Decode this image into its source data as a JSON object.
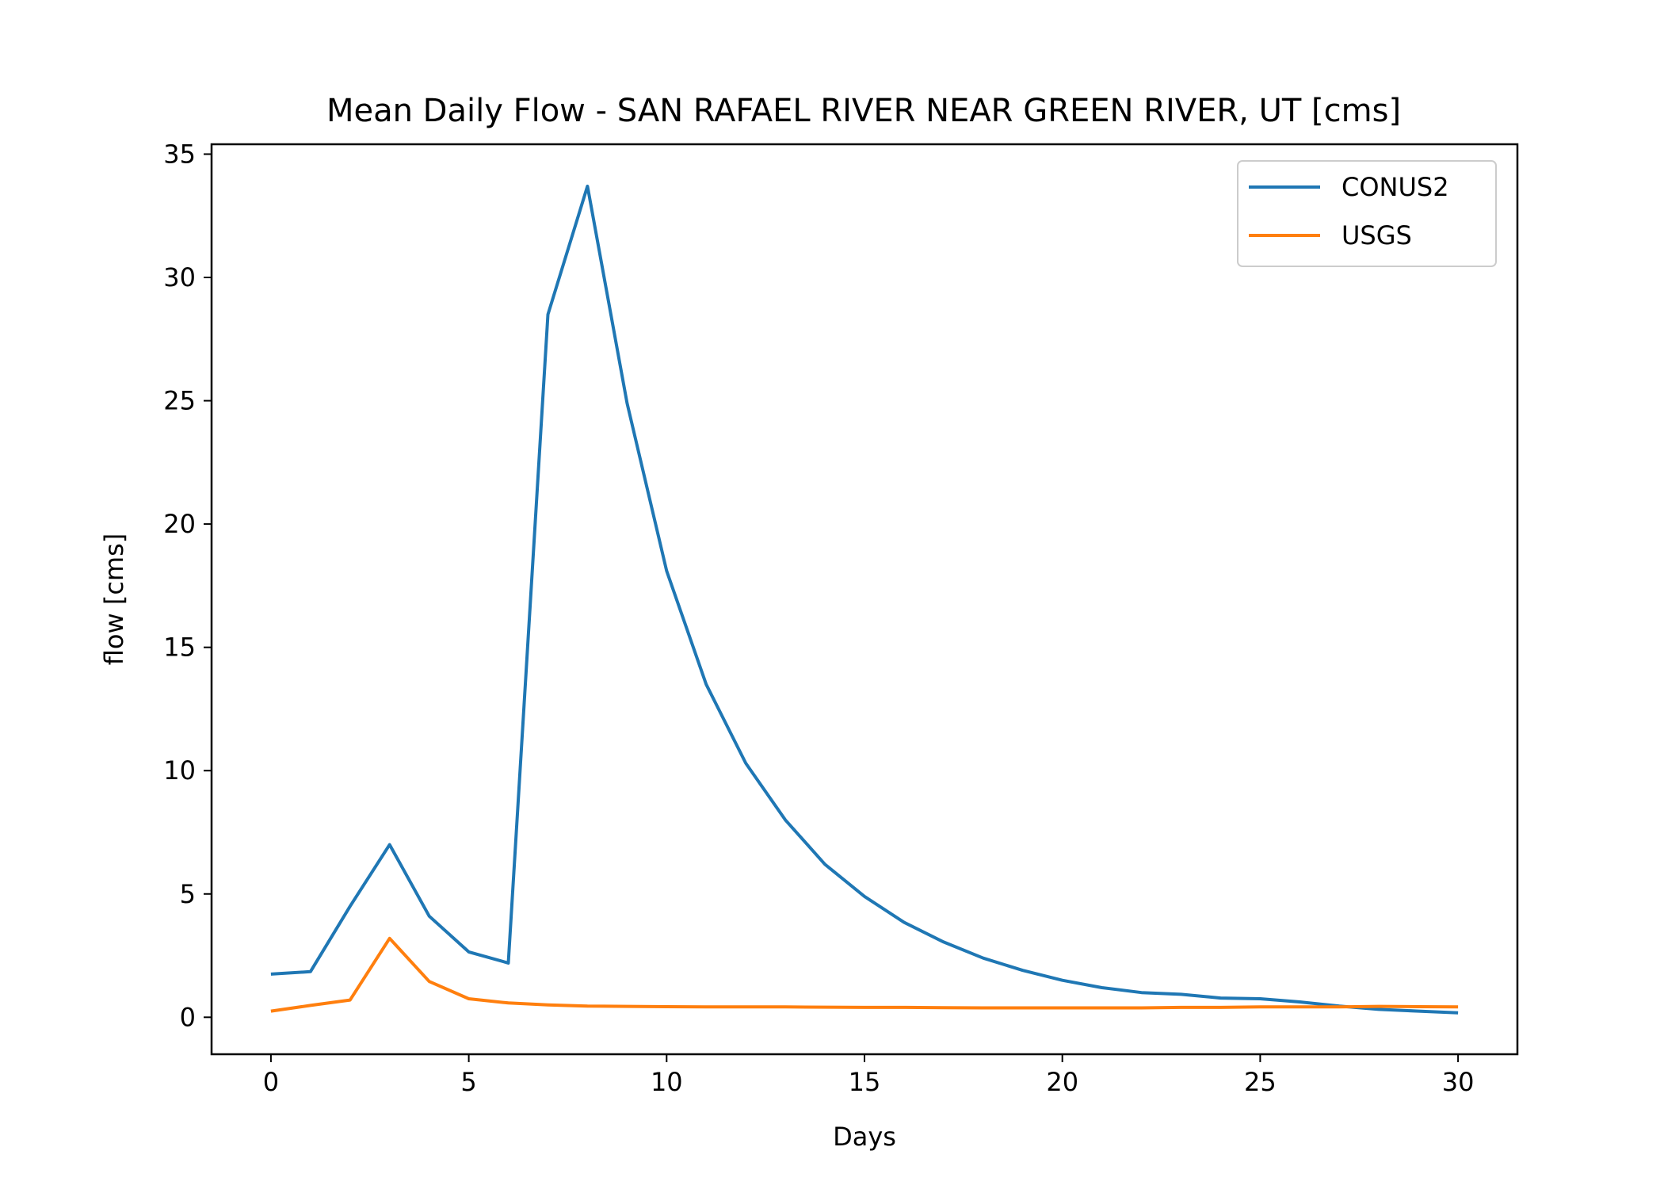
{
  "chart_data": {
    "type": "line",
    "title": "Mean Daily Flow - SAN RAFAEL RIVER NEAR GREEN RIVER, UT [cms]",
    "xlabel": "Days",
    "ylabel": "flow [cms]",
    "xlim": [
      -1.5,
      31.5
    ],
    "ylim": [
      -1.5,
      35.4
    ],
    "xticks": [
      0,
      5,
      10,
      15,
      20,
      25,
      30
    ],
    "yticks": [
      0,
      5,
      10,
      15,
      20,
      25,
      30,
      35
    ],
    "grid": false,
    "legend": "top-right",
    "x": [
      0,
      1,
      2,
      3,
      4,
      5,
      6,
      7,
      8,
      9,
      10,
      11,
      12,
      13,
      14,
      15,
      16,
      17,
      18,
      19,
      20,
      21,
      22,
      23,
      24,
      25,
      26,
      27,
      28,
      29,
      30
    ],
    "series": [
      {
        "name": "CONUS2",
        "color": "#1f77b4",
        "values": [
          1.75,
          1.85,
          4.5,
          7.0,
          4.1,
          2.65,
          2.2,
          28.5,
          33.7,
          24.9,
          18.1,
          13.5,
          10.3,
          8.0,
          6.2,
          4.9,
          3.85,
          3.05,
          2.4,
          1.9,
          1.5,
          1.2,
          1.0,
          0.93,
          0.78,
          0.75,
          0.62,
          0.45,
          0.32,
          0.25,
          0.18
        ]
      },
      {
        "name": "USGS",
        "color": "#ff7f0e",
        "values": [
          0.25,
          0.48,
          0.7,
          3.2,
          1.45,
          0.75,
          0.58,
          0.5,
          0.45,
          0.44,
          0.43,
          0.42,
          0.42,
          0.42,
          0.41,
          0.4,
          0.4,
          0.39,
          0.38,
          0.38,
          0.38,
          0.38,
          0.38,
          0.4,
          0.4,
          0.42,
          0.42,
          0.42,
          0.44,
          0.43,
          0.42
        ]
      }
    ]
  }
}
